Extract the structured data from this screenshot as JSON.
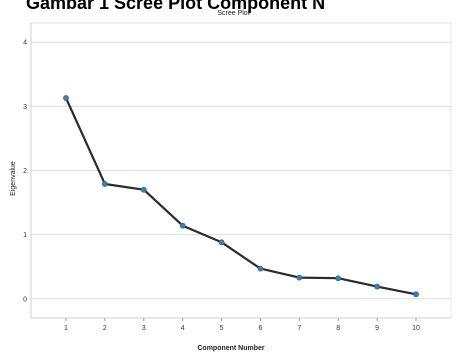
{
  "heading": "Gambar 1 Scree Plot Component N",
  "chart_data": {
    "type": "line",
    "title": "Scree Plot",
    "xlabel": "Component Number",
    "ylabel": "Eigenvalue",
    "x": [
      1,
      2,
      3,
      4,
      5,
      6,
      7,
      8,
      9,
      10
    ],
    "y": [
      3.13,
      1.79,
      1.7,
      1.14,
      0.88,
      0.47,
      0.33,
      0.32,
      0.19,
      0.07
    ],
    "xlim": [
      0.1,
      10.9
    ],
    "ylim": [
      -0.3,
      4.3
    ],
    "yticks": [
      0,
      1,
      2,
      3,
      4
    ],
    "grid": "horizontal",
    "colors": {
      "line": "#2b2b2b",
      "marker": "#3d7fb0",
      "grid": "#dddddd"
    }
  }
}
